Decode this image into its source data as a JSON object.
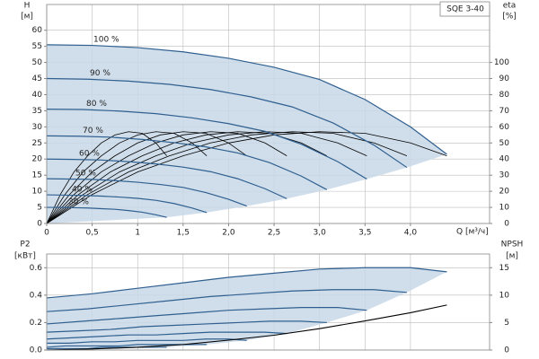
{
  "chart_data": [
    {
      "type": "line",
      "title": "SQE 3-40",
      "y_label": "H",
      "y_unit": "[м]",
      "y2_label": "eta",
      "y2_unit": "[%]",
      "x_label": "Q [м³/ч]",
      "xlim": [
        0,
        4.87
      ],
      "ylim": [
        0,
        68
      ],
      "y2lim": [
        0,
        136
      ],
      "grid": true,
      "fill_color": "#c8d8e8",
      "eta_color": "#000000",
      "xticks": [
        0,
        {
          "value": 0.5,
          "label": "0,5"
        },
        1,
        {
          "value": 1.5,
          "label": "1,5"
        },
        {
          "value": 2,
          "label": "2,0"
        },
        {
          "value": 2.5,
          "label": "2,5"
        },
        {
          "value": 3,
          "label": "3,0"
        },
        {
          "value": 3.5,
          "label": "3,5"
        },
        {
          "value": 4,
          "label": "4,0"
        }
      ],
      "yticks": [
        0,
        5,
        10,
        15,
        20,
        25,
        30,
        35,
        40,
        45,
        50,
        55,
        60
      ],
      "y2ticks": [
        0,
        10,
        20,
        30,
        40,
        50,
        60,
        70,
        80,
        90,
        100
      ],
      "series": [
        {
          "name": "100 %",
          "color": "#2f5f8f",
          "x": [
            0,
            0.5,
            1,
            1.5,
            2,
            2.5,
            3,
            3.5,
            4,
            4.4
          ],
          "values": [
            55.5,
            55.3,
            54.6,
            53.3,
            51.3,
            48.5,
            44.7,
            38.5,
            30,
            21.5
          ],
          "eta": [
            0,
            18,
            32,
            42,
            50,
            55,
            57,
            56,
            50,
            42
          ]
        },
        {
          "name": "90 %",
          "color": "#2f5f8f",
          "x": [
            0,
            0.45,
            0.9,
            1.35,
            1.8,
            2.25,
            2.7,
            3.15,
            3.6,
            3.96
          ],
          "values": [
            45,
            44.8,
            44.2,
            43.2,
            41.6,
            39.3,
            36.2,
            31.2,
            24.3,
            17.4
          ],
          "eta": [
            0,
            18,
            32,
            42,
            50,
            55,
            57,
            56,
            50,
            42
          ]
        },
        {
          "name": "80 %",
          "color": "#2f5f8f",
          "x": [
            0,
            0.4,
            0.8,
            1.2,
            1.6,
            2,
            2.4,
            2.8,
            3.2,
            3.52
          ],
          "values": [
            35.5,
            35.4,
            34.9,
            34.1,
            32.8,
            31,
            28.6,
            24.6,
            19.2,
            13.8
          ],
          "eta": [
            0,
            18,
            32,
            42,
            50,
            55,
            57,
            56,
            50,
            42
          ]
        },
        {
          "name": "70 %",
          "color": "#2f5f8f",
          "x": [
            0,
            0.35,
            0.7,
            1.05,
            1.4,
            1.75,
            2.1,
            2.45,
            2.8,
            3.08
          ],
          "values": [
            27.2,
            27.1,
            26.8,
            26.1,
            25.1,
            23.8,
            21.9,
            18.9,
            14.7,
            10.5
          ],
          "eta": [
            0,
            18,
            32,
            42,
            50,
            55,
            57,
            56,
            50,
            42
          ]
        },
        {
          "name": "60 %",
          "color": "#2f5f8f",
          "x": [
            0,
            0.3,
            0.6,
            0.9,
            1.2,
            1.5,
            1.8,
            2.1,
            2.4,
            2.64
          ],
          "values": [
            20,
            19.9,
            19.7,
            19.2,
            18.5,
            17.5,
            16.1,
            13.9,
            10.8,
            7.7
          ],
          "eta": [
            0,
            18,
            32,
            42,
            50,
            55,
            57,
            56,
            50,
            42
          ]
        },
        {
          "name": "50 %",
          "color": "#2f5f8f",
          "x": [
            0,
            0.25,
            0.5,
            0.75,
            1,
            1.25,
            1.5,
            1.75,
            2,
            2.2
          ],
          "values": [
            13.9,
            13.8,
            13.7,
            13.3,
            12.8,
            12.1,
            11.2,
            9.6,
            7.5,
            5.4
          ],
          "eta": [
            0,
            18,
            32,
            42,
            50,
            55,
            57,
            56,
            50,
            42
          ]
        },
        {
          "name": "40 %",
          "color": "#2f5f8f",
          "x": [
            0,
            0.2,
            0.4,
            0.6,
            0.8,
            1,
            1.2,
            1.4,
            1.6,
            1.76
          ],
          "values": [
            8.9,
            8.8,
            8.7,
            8.5,
            8.2,
            7.8,
            7.2,
            6.2,
            4.8,
            3.4
          ],
          "eta": [
            0,
            18,
            32,
            42,
            50,
            55,
            57,
            56,
            50,
            42
          ]
        },
        {
          "name": "30 %",
          "color": "#2f5f8f",
          "x": [
            0,
            0.15,
            0.3,
            0.45,
            0.6,
            0.75,
            0.9,
            1.05,
            1.2,
            1.32
          ],
          "values": [
            5,
            5,
            4.9,
            4.8,
            4.6,
            4.4,
            4,
            3.5,
            2.7,
            1.9
          ],
          "eta": [
            0,
            18,
            32,
            42,
            50,
            55,
            57,
            56,
            50,
            42
          ]
        }
      ]
    },
    {
      "type": "line",
      "y_label": "P2",
      "y_unit": "[кВт]",
      "y2_label": "NPSH",
      "y2_unit": "[м]",
      "xlim": [
        0,
        4.87
      ],
      "ylim": [
        0,
        0.7
      ],
      "y2lim": [
        0,
        17.5
      ],
      "grid": true,
      "fill_color": "#c8d8e8",
      "yticks": [
        {
          "value": 0,
          "label": "0.0"
        },
        0.2,
        0.4,
        0.6
      ],
      "y2ticks": [
        0,
        5,
        10,
        15
      ],
      "series": [
        {
          "color": "#2f5f8f",
          "x": [
            0,
            0.5,
            1,
            1.5,
            2,
            2.5,
            3,
            3.5,
            4,
            4.4
          ],
          "values": [
            0.38,
            0.41,
            0.45,
            0.49,
            0.53,
            0.56,
            0.59,
            0.6,
            0.6,
            0.57
          ]
        },
        {
          "color": "#2f5f8f",
          "x": [
            0,
            0.45,
            0.9,
            1.35,
            1.8,
            2.25,
            2.7,
            3.15,
            3.6,
            3.96
          ],
          "values": [
            0.28,
            0.3,
            0.33,
            0.36,
            0.39,
            0.41,
            0.43,
            0.44,
            0.44,
            0.42
          ]
        },
        {
          "color": "#2f5f8f",
          "x": [
            0,
            0.4,
            0.8,
            1.2,
            1.6,
            2,
            2.4,
            2.8,
            3.2,
            3.52
          ],
          "values": [
            0.19,
            0.21,
            0.23,
            0.25,
            0.27,
            0.29,
            0.3,
            0.31,
            0.31,
            0.29
          ]
        },
        {
          "color": "#2f5f8f",
          "x": [
            0,
            0.35,
            0.7,
            1.05,
            1.4,
            1.75,
            2.1,
            2.45,
            2.8,
            3.08
          ],
          "values": [
            0.13,
            0.14,
            0.15,
            0.17,
            0.18,
            0.19,
            0.2,
            0.21,
            0.21,
            0.2
          ]
        },
        {
          "color": "#2f5f8f",
          "x": [
            0,
            0.3,
            0.6,
            0.9,
            1.2,
            1.5,
            1.8,
            2.1,
            2.4,
            2.64
          ],
          "values": [
            0.08,
            0.09,
            0.1,
            0.11,
            0.11,
            0.12,
            0.13,
            0.13,
            0.13,
            0.12
          ]
        },
        {
          "color": "#2f5f8f",
          "x": [
            0,
            0.25,
            0.5,
            0.75,
            1,
            1.25,
            1.5,
            1.75,
            2,
            2.2
          ],
          "values": [
            0.05,
            0.05,
            0.06,
            0.06,
            0.07,
            0.07,
            0.07,
            0.08,
            0.08,
            0.07
          ]
        },
        {
          "color": "#2f5f8f",
          "x": [
            0,
            0.2,
            0.4,
            0.6,
            0.8,
            1,
            1.2,
            1.4,
            1.6,
            1.76
          ],
          "values": [
            0.02,
            0.03,
            0.03,
            0.03,
            0.03,
            0.04,
            0.04,
            0.04,
            0.04,
            0.04
          ]
        },
        {
          "color": "#2f5f8f",
          "x": [
            0,
            0.15,
            0.3,
            0.45,
            0.6,
            0.75,
            0.9,
            1.05,
            1.2,
            1.32
          ],
          "values": [
            0.01,
            0.01,
            0.01,
            0.01,
            0.02,
            0.02,
            0.02,
            0.02,
            0.02,
            0.02
          ]
        },
        {
          "color": "#000000",
          "axis": "y2",
          "x": [
            0,
            0.5,
            1,
            1.5,
            2,
            2.5,
            3,
            3.5,
            4,
            4.4
          ],
          "values": [
            0,
            0.2,
            0.5,
            1,
            1.8,
            2.7,
            3.9,
            5.3,
            6.8,
            8.2
          ]
        }
      ]
    }
  ]
}
